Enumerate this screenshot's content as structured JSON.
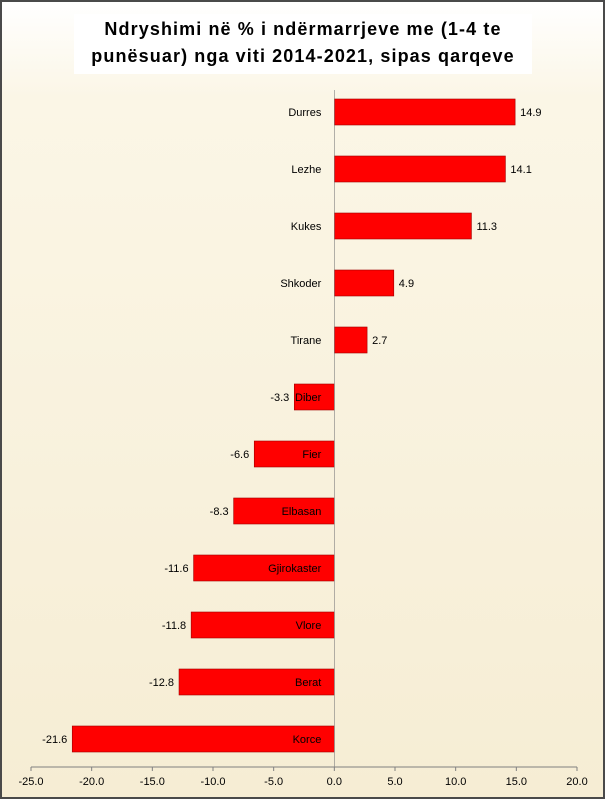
{
  "chart_data": {
    "type": "bar",
    "orientation": "horizontal",
    "title": "Ndryshimi në % i ndërmarrjeve me (1-4 te punësuar) nga viti 2014-2021, sipas qarqeve",
    "title_lines": [
      "Ndryshimi në % i ndërmarrjeve me (1-4 te",
      "punësuar) nga viti 2014-2021, sipas qarqeve"
    ],
    "xlabel": "",
    "ylabel": "",
    "categories": [
      "Durres",
      "Lezhe",
      "Kukes",
      "Shkoder",
      "Tirane",
      "Diber",
      "Fier",
      "Elbasan",
      "Gjirokaster",
      "Vlore",
      "Berat",
      "Korce"
    ],
    "values": [
      14.9,
      14.1,
      11.3,
      4.9,
      2.7,
      -3.3,
      -6.6,
      -8.3,
      -11.6,
      -11.8,
      -12.8,
      -21.6
    ],
    "value_labels": [
      "14.9",
      "14.1",
      "11.3",
      "4.9",
      "2.7",
      "-3.3",
      "-6.6",
      "-8.3",
      "-11.6",
      "-11.8",
      "-12.8",
      "-21.6"
    ],
    "xlim": [
      -25,
      20
    ],
    "xticks": [
      "-25.0",
      "-20.0",
      "-15.0",
      "-10.0",
      "-5.0",
      "0.0",
      "5.0",
      "10.0",
      "15.0",
      "20.0"
    ],
    "grid": false,
    "legend": "none",
    "bar_color": "#ff0000"
  }
}
